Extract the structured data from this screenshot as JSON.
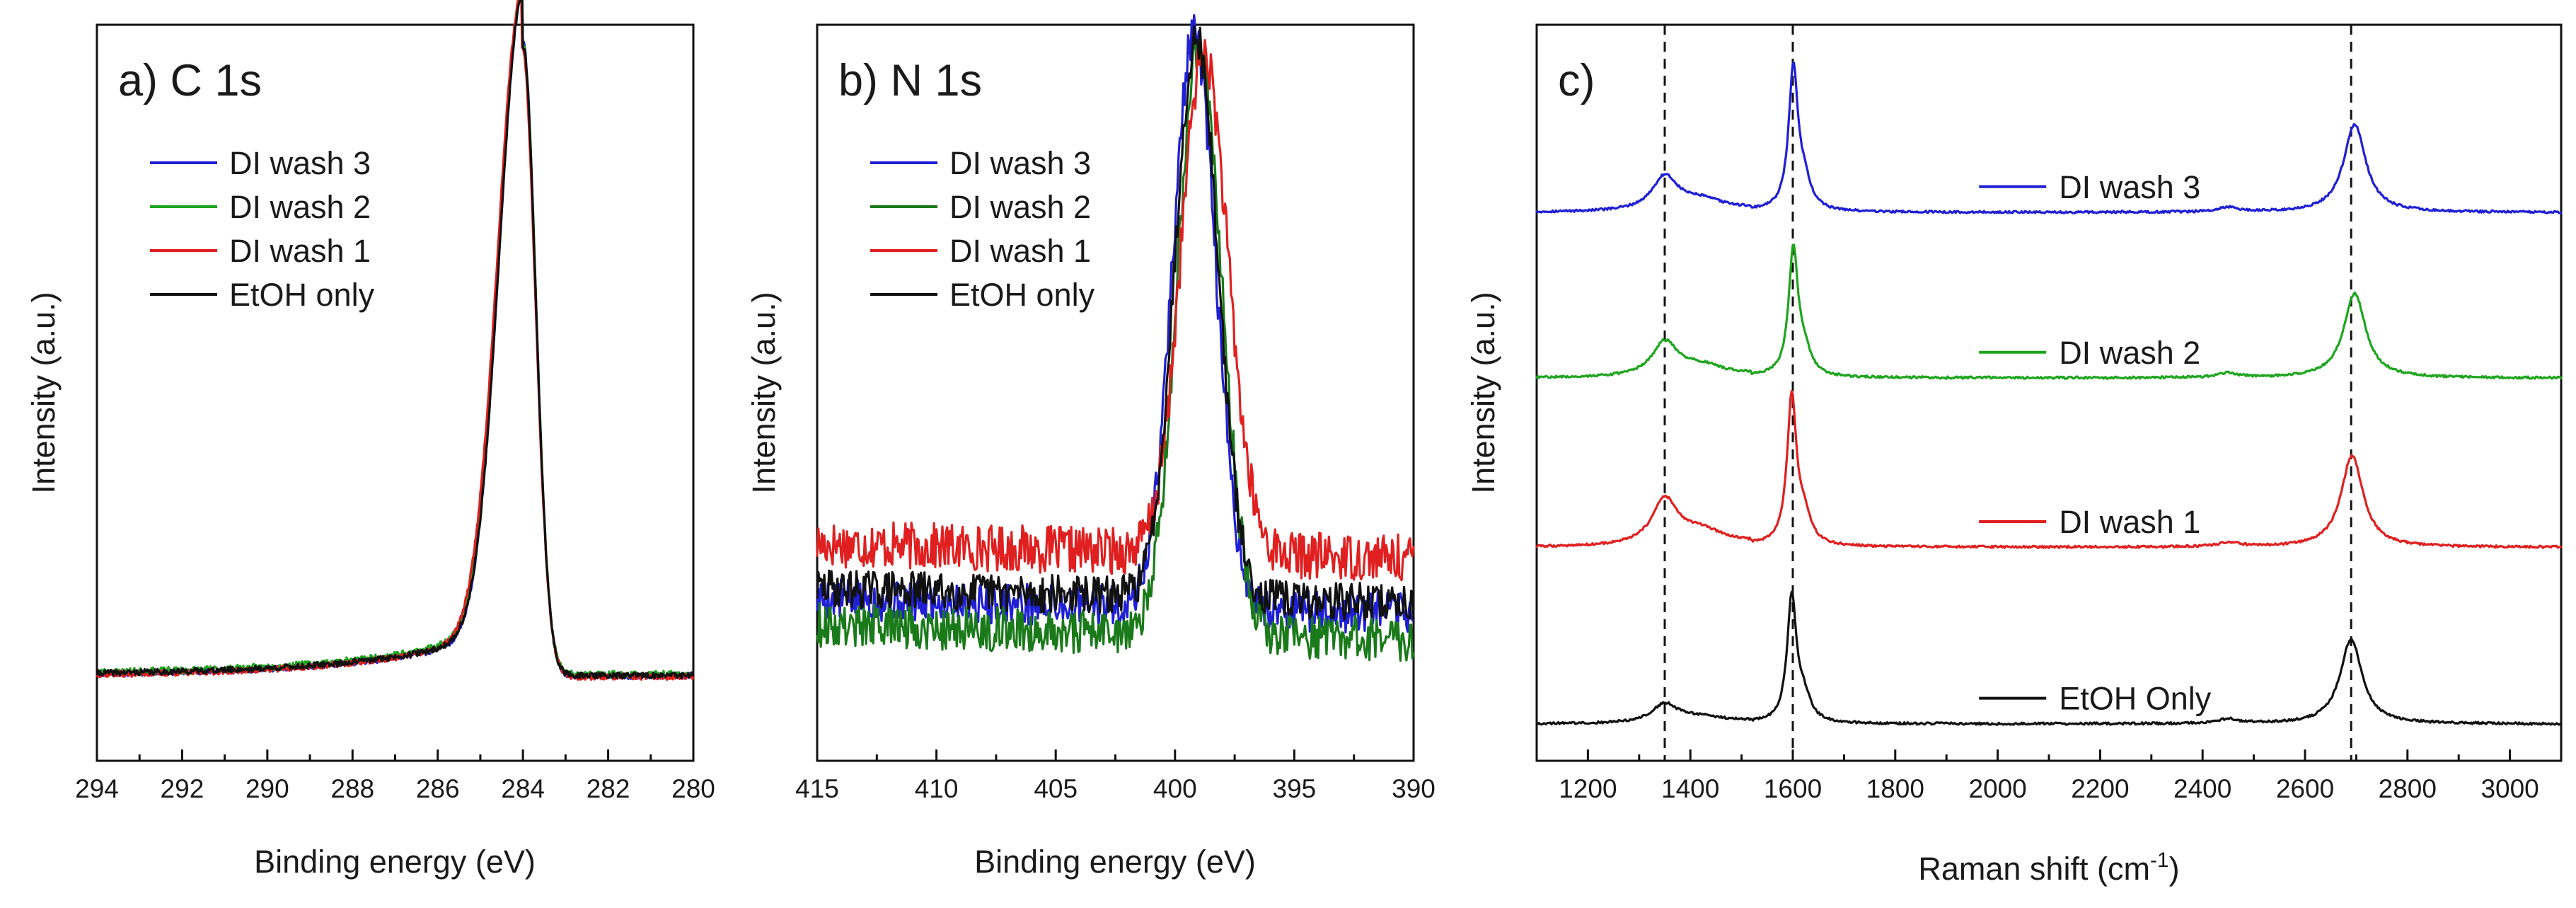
{
  "colors": {
    "blue": "#1f1fd6",
    "green": "#1fa51f",
    "red": "#e02020",
    "black": "#111111",
    "darkgreen": "#1a7a1a"
  },
  "chart_data": [
    {
      "id": "c1s",
      "type": "line",
      "title": "a) C 1s",
      "xlabel": "Binding energy (eV)",
      "ylabel": "Intensity (a.u.)",
      "xlim": [
        294,
        280
      ],
      "x_reversed": true,
      "ylim": [
        0,
        1
      ],
      "xticks": [
        294,
        292,
        290,
        288,
        286,
        284,
        282,
        280
      ],
      "xtick_labels": [
        "294",
        "292",
        "290",
        "288",
        "286",
        "284",
        "282",
        "280"
      ],
      "legend": [
        "DI wash 3",
        "DI wash 2",
        "DI wash 1",
        "EtOH only"
      ],
      "legend_colors": [
        "#1f1fd6",
        "#1fa51f",
        "#e02020",
        "#111111"
      ],
      "series": [
        {
          "name": "DI wash 3",
          "color": "#1f1fd6",
          "peak_center": 284.0,
          "peak_sigma_low": 0.55,
          "peak_sigma_high": 0.3,
          "baseline": 0.115,
          "height": 0.86,
          "shoulder": 0.06,
          "offset": 0.0,
          "noise": 0.004,
          "seed": 11
        },
        {
          "name": "DI wash 2",
          "color": "#1fa51f",
          "peak_center": 284.0,
          "peak_sigma_low": 0.56,
          "peak_sigma_high": 0.3,
          "baseline": 0.117,
          "height": 0.858,
          "shoulder": 0.065,
          "offset": 0.0,
          "noise": 0.005,
          "seed": 23
        },
        {
          "name": "DI wash 1",
          "color": "#e02020",
          "peak_center": 284.02,
          "peak_sigma_low": 0.57,
          "peak_sigma_high": 0.31,
          "baseline": 0.114,
          "height": 0.857,
          "shoulder": 0.062,
          "offset": 0.0,
          "noise": 0.004,
          "seed": 37
        },
        {
          "name": "EtOH only",
          "color": "#111111",
          "peak_center": 284.0,
          "peak_sigma_low": 0.55,
          "peak_sigma_high": 0.3,
          "baseline": 0.116,
          "height": 0.855,
          "shoulder": 0.06,
          "offset": 0.0,
          "noise": 0.004,
          "seed": 41
        }
      ]
    },
    {
      "id": "n1s",
      "type": "line",
      "title": "b) N 1s",
      "xlabel": "Binding energy (eV)",
      "ylabel": "Intensity (a.u.)",
      "xlim": [
        415,
        390
      ],
      "x_reversed": true,
      "ylim": [
        0,
        1
      ],
      "xticks": [
        415,
        410,
        405,
        400,
        395,
        390
      ],
      "xtick_labels": [
        "415",
        "410",
        "405",
        "400",
        "395",
        "390"
      ],
      "legend": [
        "DI wash 3",
        "DI wash 2",
        "DI wash 1",
        "EtOH only"
      ],
      "legend_colors": [
        "#1f1fd6",
        "#1a7a1a",
        "#e02020",
        "#111111"
      ],
      "series": [
        {
          "name": "DI wash 3",
          "color": "#1f1fd6",
          "peak_center": 399.2,
          "peak_sigma_low": 0.9,
          "peak_sigma_high": 0.9,
          "baseline": 0.2,
          "height": 0.78,
          "baseline_slope": 0.004,
          "noise": 0.028,
          "seed": 5
        },
        {
          "name": "DI wash 2",
          "color": "#1a7a1a",
          "peak_center": 399.0,
          "peak_sigma_low": 0.9,
          "peak_sigma_high": 0.95,
          "baseline": 0.165,
          "height": 0.8,
          "baseline_slope": 0.004,
          "noise": 0.03,
          "seed": 9
        },
        {
          "name": "DI wash 1",
          "color": "#e02020",
          "peak_center": 398.8,
          "peak_sigma_low": 0.95,
          "peak_sigma_high": 1.0,
          "baseline": 0.275,
          "height": 0.68,
          "baseline_slope": 0.004,
          "noise": 0.032,
          "seed": 17
        },
        {
          "name": "EtOH only",
          "color": "#111111",
          "peak_center": 399.1,
          "peak_sigma_low": 0.9,
          "peak_sigma_high": 0.9,
          "baseline": 0.215,
          "height": 0.76,
          "baseline_slope": 0.004,
          "noise": 0.026,
          "seed": 29
        }
      ]
    },
    {
      "id": "raman",
      "type": "line",
      "title": "c)",
      "xlabel": "Raman shift (cm",
      "xlabel_sup": "-1",
      "xlabel_end": ")",
      "ylabel": "Intensity (a.u.)",
      "xlim": [
        1100,
        3100
      ],
      "x_reversed": false,
      "ylim": [
        0,
        1
      ],
      "xticks": [
        1200,
        1400,
        1600,
        1800,
        2000,
        2200,
        2400,
        2600,
        2800,
        3000
      ],
      "xtick_labels": [
        "1200",
        "1400",
        "1600",
        "1800",
        "2000",
        "2200",
        "2400",
        "2600",
        "2800",
        "3000"
      ],
      "reference_lines": [
        1350,
        1600,
        2690
      ],
      "series": [
        {
          "name": "DI wash 3",
          "color": "#1f1fd6",
          "offset": 0.745,
          "d_height": 0.045,
          "g_height": 0.19,
          "g_pos": 1601,
          "twod_height": 0.12,
          "twod_pos": 2697,
          "label_x": 2150
        },
        {
          "name": "DI wash 2",
          "color": "#1fa51f",
          "offset": 0.52,
          "d_height": 0.045,
          "g_height": 0.17,
          "g_pos": 1601,
          "twod_height": 0.115,
          "twod_pos": 2697,
          "label_x": 2150
        },
        {
          "name": "DI wash 1",
          "color": "#e02020",
          "offset": 0.29,
          "d_height": 0.06,
          "g_height": 0.2,
          "g_pos": 1598,
          "twod_height": 0.125,
          "twod_pos": 2692,
          "label_x": 2150
        },
        {
          "name": "EtOH Only",
          "color": "#111111",
          "offset": 0.05,
          "d_height": 0.025,
          "g_height": 0.17,
          "g_pos": 1598,
          "twod_height": 0.115,
          "twod_pos": 2690,
          "label_x": 2150
        }
      ]
    }
  ]
}
